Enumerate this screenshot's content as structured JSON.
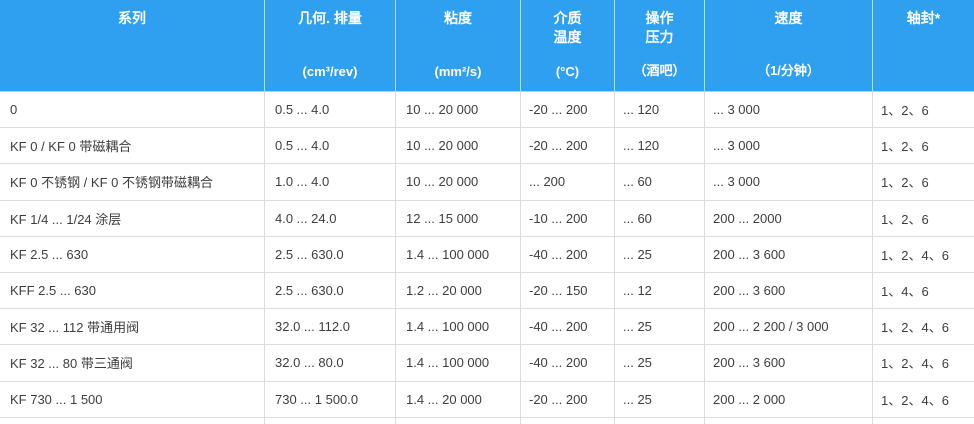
{
  "colors": {
    "header_bg": "#2F9FF0",
    "header_text": "#FFFFFF",
    "header_divider": "#FFFFFF",
    "row_bg": "#FFFFFF",
    "row_border": "#DCDCDC",
    "cell_text": "#3D3D3D"
  },
  "table": {
    "columns": [
      {
        "id": "series",
        "title_lines": [
          "系列"
        ],
        "unit": ""
      },
      {
        "id": "displacement",
        "title_lines": [
          "几何. 排量"
        ],
        "unit": "(cm³/rev)"
      },
      {
        "id": "viscosity",
        "title_lines": [
          "粘度"
        ],
        "unit": "(mm²/s)"
      },
      {
        "id": "media-temperature",
        "title_lines": [
          "介质",
          "温度"
        ],
        "unit": "(°C)"
      },
      {
        "id": "operating-pressure",
        "title_lines": [
          "操作",
          "压力"
        ],
        "unit": "（酒吧）"
      },
      {
        "id": "speed",
        "title_lines": [
          "速度"
        ],
        "unit": "（1/分钟）"
      },
      {
        "id": "shaft-seal",
        "title_lines": [
          "轴封*"
        ],
        "unit": ""
      }
    ],
    "rows": [
      [
        "0",
        "0.5 ... 4.0",
        "10 ... 20 000",
        "-20 ... 200",
        "... 120",
        "... 3 000",
        "1、2、6"
      ],
      [
        "KF 0 / KF 0 带磁耦合",
        "0.5 ... 4.0",
        "10 ... 20 000",
        "-20 ... 200",
        "... 120",
        "... 3 000",
        "1、2、6"
      ],
      [
        "KF 0 不锈钢 / KF 0 不锈钢带磁耦合",
        "1.0 ... 4.0",
        "10 ... 20 000",
        "... 200",
        "... 60",
        "... 3 000",
        "1、2、6"
      ],
      [
        "KF 1/4 ... 1/24 涂层",
        "4.0 ... 24.0",
        "12 ... 15 000",
        "-10 ... 200",
        "... 60",
        "200 ... 2000",
        "1、2、6"
      ],
      [
        "KF 2.5 ... 630",
        "2.5 ... 630.0",
        "1.4 ... 100 000",
        "-40 ... 200",
        "... 25",
        "200 ... 3 600",
        "1、2、4、6"
      ],
      [
        "KFF 2.5 ... 630",
        "2.5 ... 630.0",
        "1.2 ... 20 000",
        "-20 ... 150",
        "... 12",
        "200 ... 3 600",
        "1、4、6"
      ],
      [
        "KF 32 ... 112 带通用阀",
        "32.0 ... 112.0",
        "1.4 ... 100 000",
        "-40 ... 200",
        "... 25",
        "200 ... 2 200 / 3 000",
        "1、2、4、6"
      ],
      [
        "KF 32 ... 80 带三通阀",
        "32.0 ... 80.0",
        "1.4 ... 100 000",
        "-40 ... 200",
        "... 25",
        "200 ... 3 600",
        "1、2、4、6"
      ],
      [
        "KF 730 ... 1 500",
        "730 ... 1 500.0",
        "1.4 ... 20 000",
        "-20 ... 200",
        "... 25",
        "200 ... 2 000",
        "1、2、4、6"
      ]
    ]
  }
}
